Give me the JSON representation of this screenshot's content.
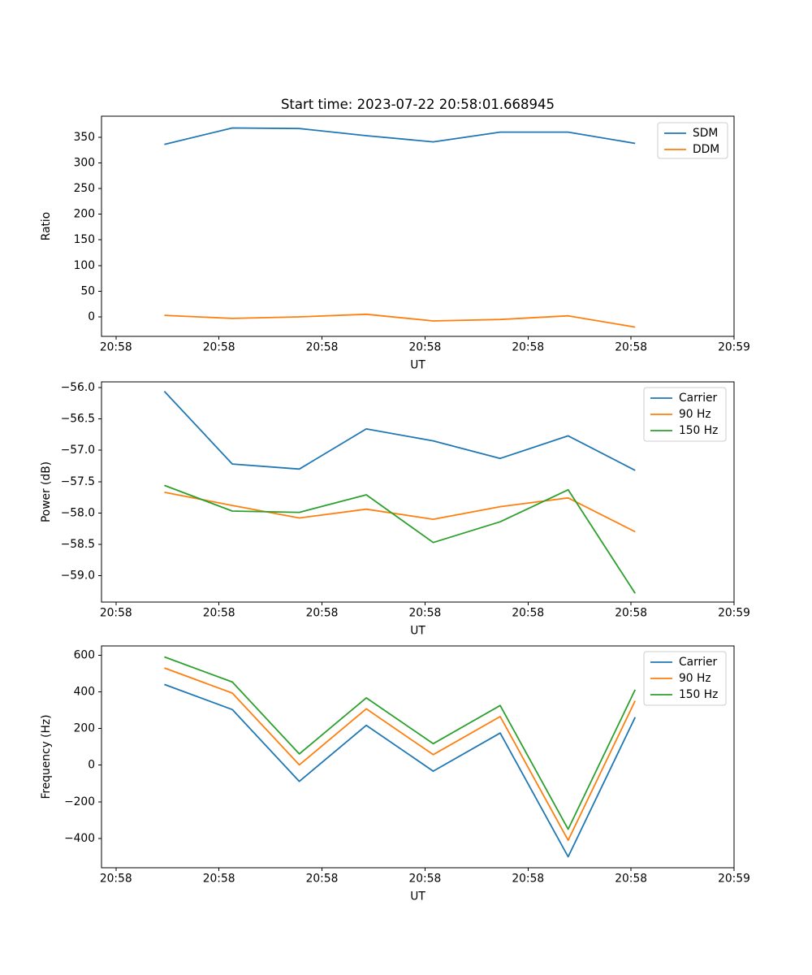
{
  "figure": {
    "title": "Start time: 2023-07-22 20:58:01.668945",
    "background": "#ffffff"
  },
  "palette": {
    "blue": "#1f77b4",
    "orange": "#ff7f0e",
    "green": "#2ca02c",
    "axis_color": "#000000",
    "legend_edge": "#cccccc",
    "legend_fill": "#ffffff"
  },
  "time_axis": {
    "label": "UT",
    "tick_labels": [
      "20:58",
      "20:58",
      "20:58",
      "20:58",
      "20:58",
      "20:58",
      "20:59"
    ],
    "tick_seconds": [
      0,
      10,
      20,
      30,
      40,
      50,
      60
    ],
    "xlim_seconds": [
      -1.4,
      60.0
    ],
    "sample_seconds": [
      4.7,
      11.3,
      17.8,
      24.3,
      30.8,
      37.3,
      43.9,
      50.4
    ]
  },
  "chart_data": [
    {
      "type": "line",
      "title": "Start time: 2023-07-22 20:58:01.668945",
      "xlabel": "UT",
      "ylabel": "Ratio",
      "x": [
        4.7,
        11.3,
        17.8,
        24.3,
        30.8,
        37.3,
        43.9,
        50.4
      ],
      "x_tick_labels": [
        "20:58",
        "20:58",
        "20:58",
        "20:58",
        "20:58",
        "20:58",
        "20:59"
      ],
      "yticks": [
        0,
        50,
        100,
        150,
        200,
        250,
        300,
        350
      ],
      "ytick_labels": [
        "0",
        "50",
        "100",
        "150",
        "200",
        "250",
        "300",
        "350"
      ],
      "ylim": [
        -38,
        391
      ],
      "grid": false,
      "legend_position": "upper right",
      "legend": [
        "SDM",
        "DDM"
      ],
      "series": [
        {
          "name": "SDM",
          "color_key": "blue",
          "values": [
            336,
            368,
            367,
            353,
            341,
            360,
            360,
            338
          ]
        },
        {
          "name": "DDM",
          "color_key": "orange",
          "values": [
            3,
            -3,
            0,
            5,
            -8,
            -5,
            2,
            -20
          ]
        }
      ]
    },
    {
      "type": "line",
      "title": "",
      "xlabel": "UT",
      "ylabel": "Power (dB)",
      "x": [
        4.7,
        11.3,
        17.8,
        24.3,
        30.8,
        37.3,
        43.9,
        50.4
      ],
      "x_tick_labels": [
        "20:58",
        "20:58",
        "20:58",
        "20:58",
        "20:58",
        "20:58",
        "20:59"
      ],
      "yticks": [
        -56.0,
        -56.5,
        -57.0,
        -57.5,
        -58.0,
        -58.5,
        -59.0
      ],
      "ytick_labels": [
        "−56.0",
        "−56.5",
        "−57.0",
        "−57.5",
        "−58.0",
        "−58.5",
        "−59.0"
      ],
      "ylim": [
        -59.42,
        -55.91
      ],
      "grid": false,
      "legend_position": "upper right",
      "legend": [
        "Carrier",
        "90 Hz",
        "150 Hz"
      ],
      "series": [
        {
          "name": "Carrier",
          "color_key": "blue",
          "values": [
            -56.06,
            -57.22,
            -57.3,
            -56.66,
            -56.85,
            -57.13,
            -56.77,
            -57.32
          ]
        },
        {
          "name": "90 Hz",
          "color_key": "orange",
          "values": [
            -57.67,
            -57.88,
            -58.08,
            -57.94,
            -58.1,
            -57.9,
            -57.76,
            -58.3
          ]
        },
        {
          "name": "150 Hz",
          "color_key": "green",
          "values": [
            -57.56,
            -57.97,
            -57.99,
            -57.71,
            -58.47,
            -58.14,
            -57.63,
            -59.28
          ]
        }
      ]
    },
    {
      "type": "line",
      "title": "",
      "xlabel": "UT",
      "ylabel": "Frequency (Hz)",
      "x": [
        4.7,
        11.3,
        17.8,
        24.3,
        30.8,
        37.3,
        43.9,
        50.4
      ],
      "x_tick_labels": [
        "20:58",
        "20:58",
        "20:58",
        "20:58",
        "20:58",
        "20:58",
        "20:59"
      ],
      "yticks": [
        600,
        400,
        200,
        0,
        -200,
        -400
      ],
      "ytick_labels": [
        "600",
        "400",
        "200",
        "0",
        "−200",
        "−400"
      ],
      "ylim": [
        -560,
        650
      ],
      "grid": false,
      "legend_position": "upper right",
      "legend": [
        "Carrier",
        "90 Hz",
        "150 Hz"
      ],
      "series": [
        {
          "name": "Carrier",
          "color_key": "blue",
          "values": [
            440,
            303,
            -89,
            217,
            -33,
            175,
            -500,
            261
          ]
        },
        {
          "name": "90 Hz",
          "color_key": "orange",
          "values": [
            530,
            393,
            1,
            307,
            57,
            265,
            -410,
            351
          ]
        },
        {
          "name": "150 Hz",
          "color_key": "green",
          "values": [
            590,
            453,
            61,
            367,
            117,
            325,
            -350,
            411
          ]
        }
      ]
    }
  ]
}
